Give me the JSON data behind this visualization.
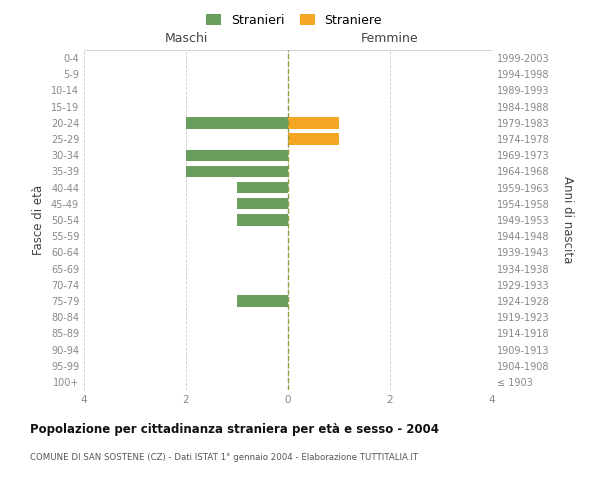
{
  "age_groups": [
    "100+",
    "95-99",
    "90-94",
    "85-89",
    "80-84",
    "75-79",
    "70-74",
    "65-69",
    "60-64",
    "55-59",
    "50-54",
    "45-49",
    "40-44",
    "35-39",
    "30-34",
    "25-29",
    "20-24",
    "15-19",
    "10-14",
    "5-9",
    "0-4"
  ],
  "birth_years": [
    "≤ 1903",
    "1904-1908",
    "1909-1913",
    "1914-1918",
    "1919-1923",
    "1924-1928",
    "1929-1933",
    "1934-1938",
    "1939-1943",
    "1944-1948",
    "1949-1953",
    "1954-1958",
    "1959-1963",
    "1964-1968",
    "1969-1973",
    "1974-1978",
    "1979-1983",
    "1984-1988",
    "1989-1993",
    "1994-1998",
    "1999-2003"
  ],
  "maschi_stranieri": [
    0,
    0,
    0,
    0,
    0,
    1,
    0,
    0,
    0,
    0,
    1,
    1,
    1,
    2,
    2,
    0,
    2,
    0,
    0,
    0,
    0
  ],
  "femmine_straniere": [
    0,
    0,
    0,
    0,
    0,
    0,
    0,
    0,
    0,
    0,
    0,
    0,
    0,
    0,
    0,
    1,
    1,
    0,
    0,
    0,
    0
  ],
  "color_stranieri": "#6a9e5e",
  "color_straniere": "#f5a623",
  "title": "Popolazione per cittadinanza straniera per età e sesso - 2004",
  "subtitle": "COMUNE DI SAN SOSTENE (CZ) - Dati ISTAT 1° gennaio 2004 - Elaborazione TUTTITALIA.IT",
  "ylabel_left": "Fasce di età",
  "ylabel_right": "Anni di nascita",
  "xlabel_maschi": "Maschi",
  "xlabel_femmine": "Femmine",
  "legend_stranieri": "Stranieri",
  "legend_straniere": "Straniere",
  "xlim": 4,
  "background_color": "#ffffff"
}
